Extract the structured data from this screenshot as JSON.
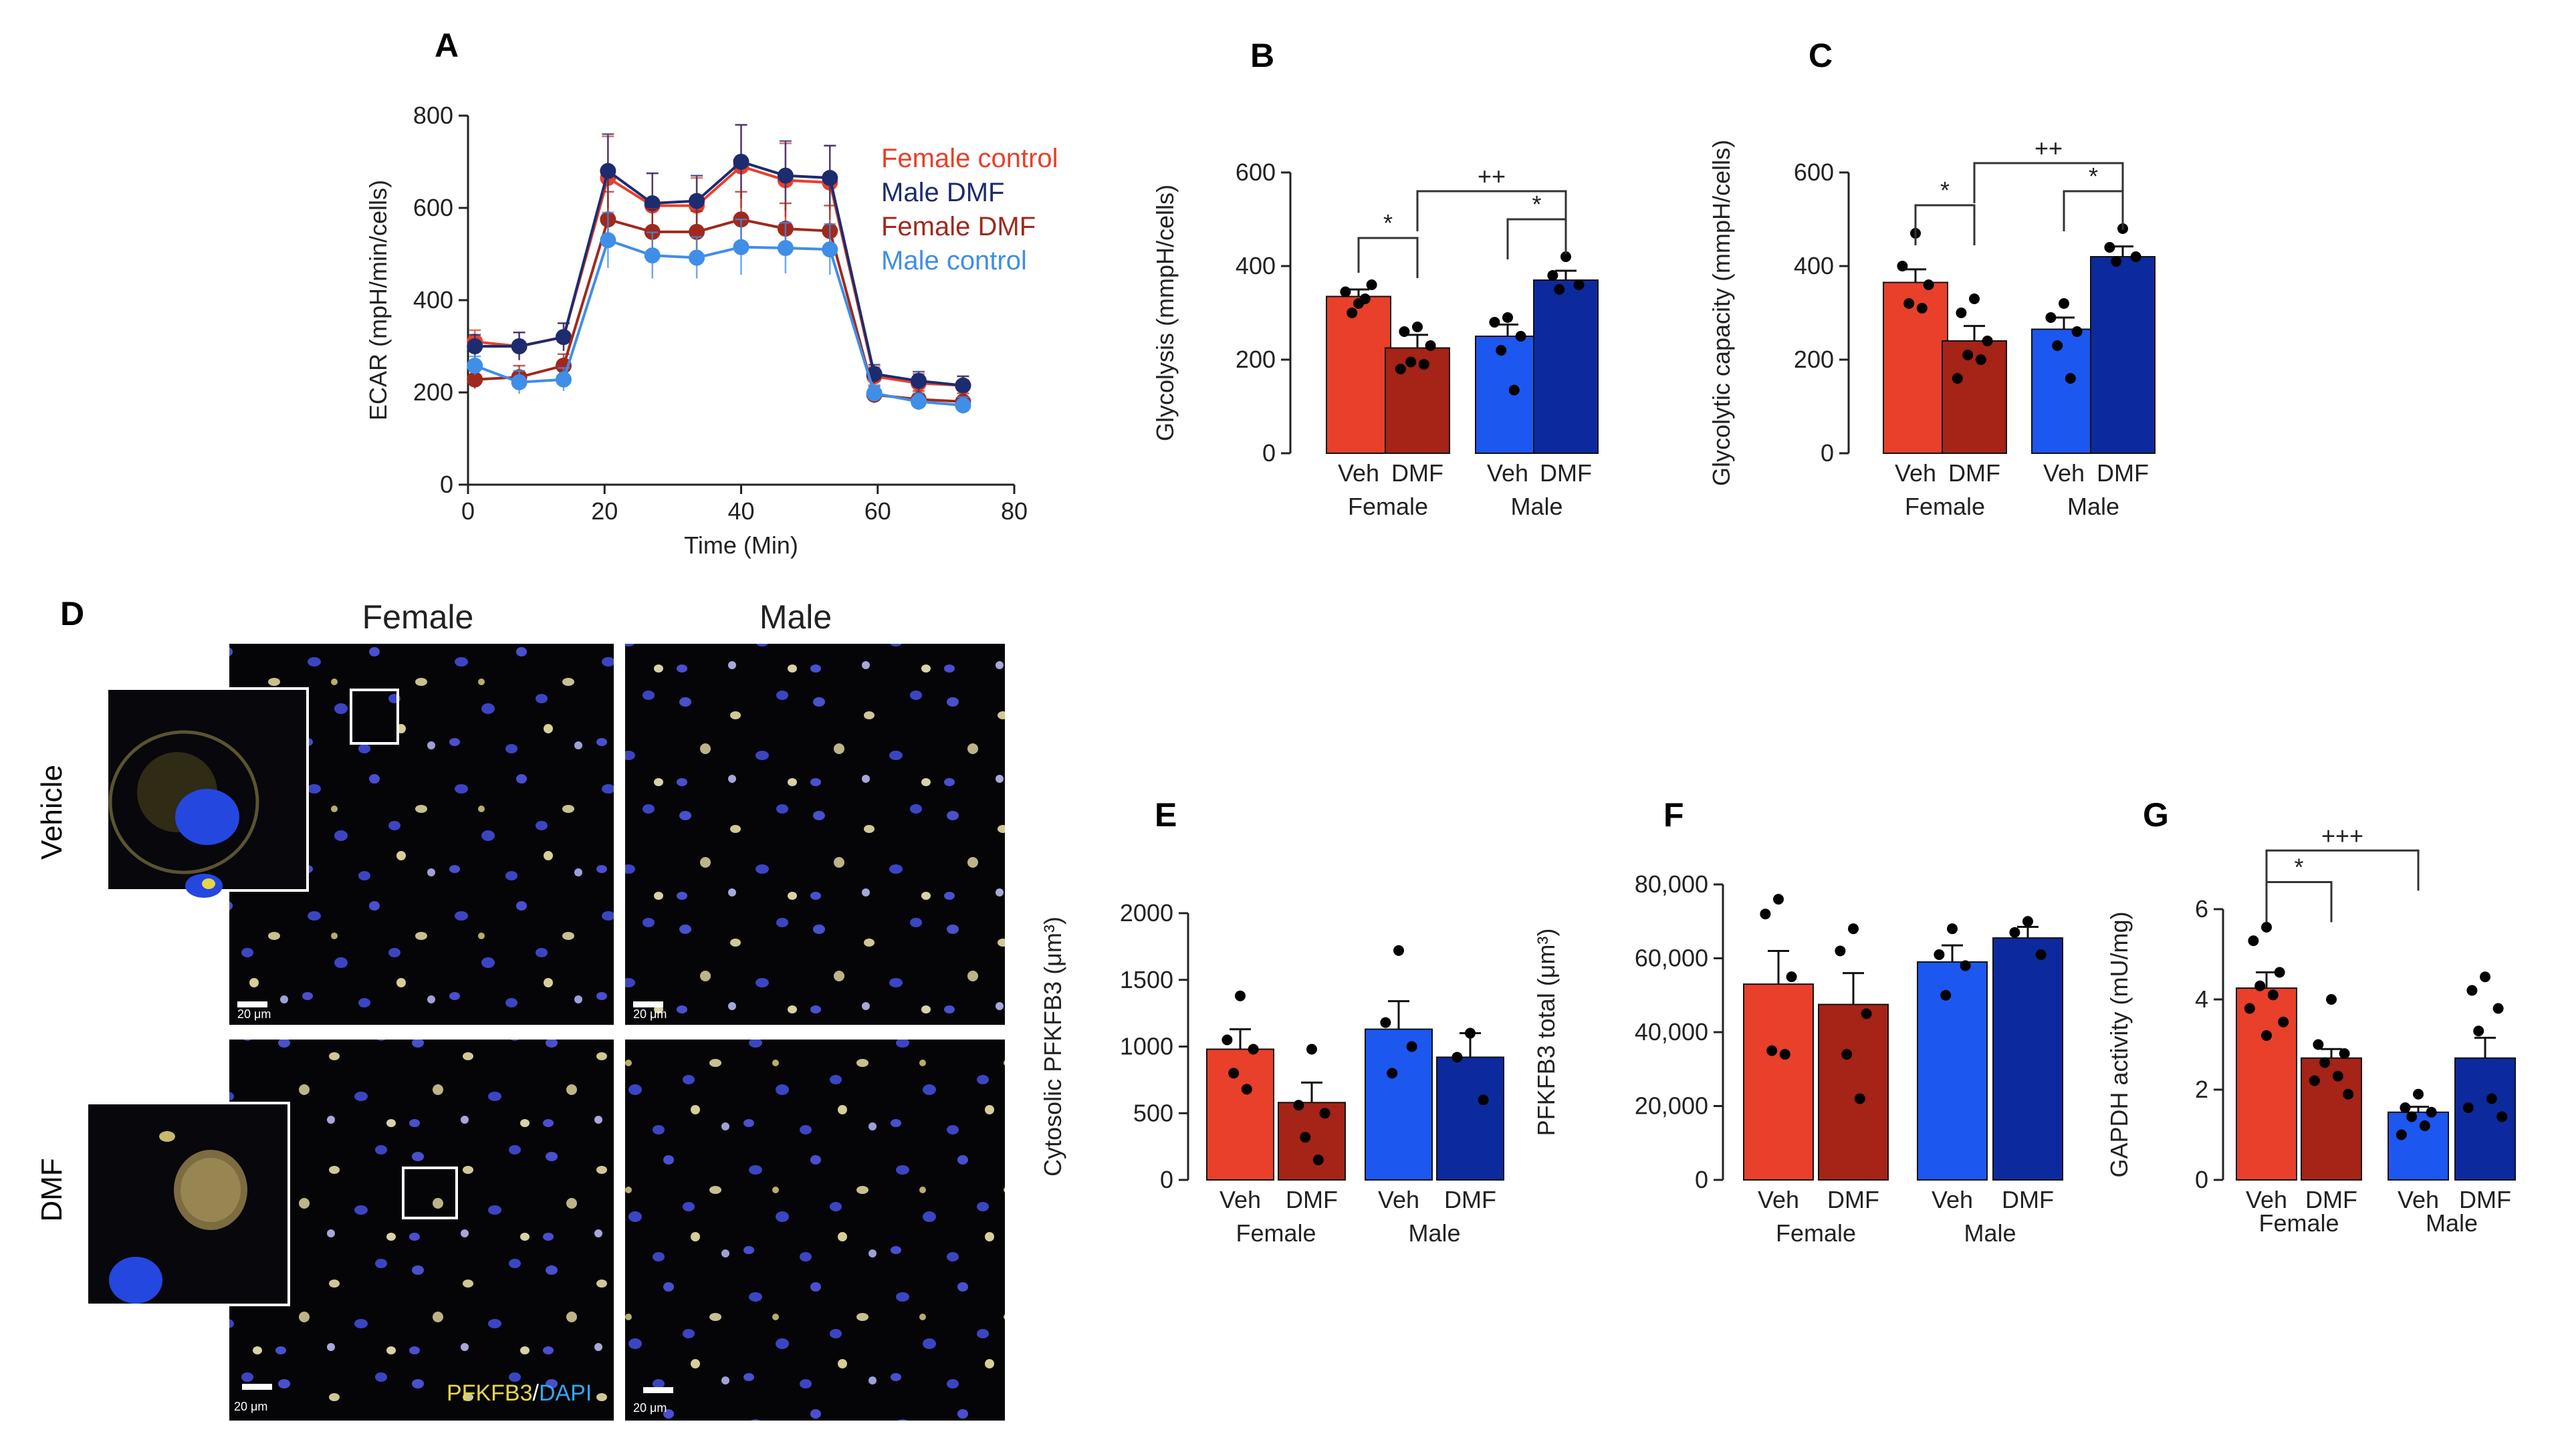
{
  "colors": {
    "female_veh": "#e8402a",
    "female_dmf": "#a52317",
    "male_veh": "#1c57f0",
    "male_dmf": "#0c2a9e",
    "female_control_line": "#e8402a",
    "male_dmf_line": "#1d2c6e",
    "female_dmf_line": "#a0291d",
    "male_control_line": "#3f8ee8",
    "pfkfb3": "#e5d64a",
    "dapi": "#35a7f0"
  },
  "chart_data": [
    {
      "id": "A",
      "panel_label": "A",
      "type": "line",
      "xlabel": "Time (Min)",
      "ylabel": "ECAR (mpH/min/cells)",
      "xlim": [
        0,
        80
      ],
      "ylim": [
        0,
        800
      ],
      "xticks": [
        "0",
        "20",
        "40",
        "60",
        "80"
      ],
      "yticks": [
        "0",
        "200",
        "400",
        "600",
        "800"
      ],
      "x": [
        1,
        7.5,
        14,
        20.5,
        27,
        33.5,
        40,
        46.5,
        53,
        59.5,
        66,
        72.5
      ],
      "series": [
        {
          "name": "Female control",
          "color_key": "female_control_line",
          "values": [
            310,
            300,
            320,
            665,
            605,
            605,
            690,
            660,
            655,
            235,
            220,
            215
          ],
          "errors": [
            25,
            30,
            30,
            90,
            70,
            60,
            90,
            80,
            80,
            20,
            20,
            20
          ]
        },
        {
          "name": "Male DMF",
          "color_key": "male_dmf_line",
          "values": [
            300,
            300,
            320,
            680,
            610,
            615,
            700,
            670,
            665,
            240,
            225,
            215
          ],
          "errors": [
            25,
            30,
            30,
            80,
            65,
            55,
            80,
            75,
            70,
            20,
            20,
            20
          ]
        },
        {
          "name": "Female DMF",
          "color_key": "female_dmf_line",
          "values": [
            228,
            233,
            258,
            575,
            548,
            548,
            575,
            555,
            550,
            195,
            185,
            180
          ],
          "errors": [
            20,
            25,
            25,
            60,
            50,
            45,
            60,
            55,
            55,
            18,
            18,
            18
          ]
        },
        {
          "name": "Male control",
          "color_key": "male_control_line",
          "values": [
            258,
            222,
            228,
            530,
            497,
            492,
            515,
            513,
            510,
            198,
            180,
            172
          ],
          "errors": [
            20,
            25,
            25,
            60,
            50,
            45,
            60,
            55,
            55,
            18,
            18,
            18
          ]
        }
      ]
    },
    {
      "id": "B",
      "panel_label": "B",
      "type": "bar",
      "ylabel": "Glycolysis (mmpH/cells)",
      "ylim": [
        0,
        600
      ],
      "yticks": [
        "0",
        "200",
        "400",
        "600"
      ],
      "categories": [
        "Veh",
        "DMF",
        "Veh",
        "DMF"
      ],
      "groups": [
        "Female",
        "Male"
      ],
      "values": [
        335,
        225,
        250,
        370
      ],
      "errors": [
        15,
        28,
        25,
        20
      ],
      "points": [
        [
          320,
          345,
          360,
          300,
          330
        ],
        [
          270,
          260,
          230,
          195,
          190,
          180
        ],
        [
          290,
          280,
          250,
          220,
          135
        ],
        [
          420,
          380,
          360,
          350
        ]
      ],
      "brackets": [
        {
          "from": 0,
          "to": 1,
          "label": "*",
          "level": 460
        },
        {
          "from": 1,
          "to": 3,
          "label": "++",
          "level": 560
        },
        {
          "from": 2,
          "to": 3,
          "label": "*",
          "level": 500
        }
      ]
    },
    {
      "id": "C",
      "panel_label": "C",
      "type": "bar",
      "ylabel": "Glycolytic capacity (mmpH/cells)",
      "ylim": [
        0,
        600
      ],
      "yticks": [
        "0",
        "200",
        "400",
        "600"
      ],
      "categories": [
        "Veh",
        "DMF",
        "Veh",
        "DMF"
      ],
      "groups": [
        "Female",
        "Male"
      ],
      "values": [
        365,
        240,
        265,
        420
      ],
      "errors": [
        28,
        32,
        25,
        22
      ],
      "points": [
        [
          470,
          400,
          360,
          320,
          310
        ],
        [
          330,
          300,
          240,
          210,
          200,
          160
        ],
        [
          320,
          290,
          260,
          230,
          160
        ],
        [
          480,
          440,
          420,
          410
        ]
      ],
      "brackets": [
        {
          "from": 0,
          "to": 1,
          "label": "*",
          "level": 530
        },
        {
          "from": 1,
          "to": 3,
          "label": "++",
          "level": 620
        },
        {
          "from": 2,
          "to": 3,
          "label": "*",
          "level": 560
        }
      ]
    },
    {
      "id": "E",
      "panel_label": "E",
      "type": "bar",
      "ylabel": "Cytosolic PFKFB3 (μm³)",
      "ylim": [
        0,
        2000
      ],
      "yticks": [
        "0",
        "500",
        "1000",
        "1500",
        "2000"
      ],
      "categories": [
        "Veh",
        "DMF",
        "Veh",
        "DMF"
      ],
      "groups": [
        "Female",
        "Male"
      ],
      "values": [
        980,
        580,
        1130,
        920
      ],
      "errors": [
        150,
        150,
        210,
        180
      ],
      "points": [
        [
          1380,
          1050,
          980,
          800,
          680
        ],
        [
          980,
          560,
          500,
          320,
          150
        ],
        [
          1720,
          1180,
          1000,
          800
        ],
        [
          1100,
          920,
          600
        ]
      ],
      "brackets": []
    },
    {
      "id": "F",
      "panel_label": "F",
      "type": "bar",
      "ylabel": "PFKFB3 total (μm³)",
      "ylim": [
        0,
        80000
      ],
      "yticks": [
        "0",
        "20,000",
        "40,000",
        "60,000",
        "80,000"
      ],
      "categories": [
        "Veh",
        "DMF",
        "Veh",
        "DMF"
      ],
      "groups": [
        "Female",
        "Male"
      ],
      "values": [
        53000,
        47500,
        59000,
        65500
      ],
      "errors": [
        9000,
        8500,
        4500,
        3000
      ],
      "points": [
        [
          76000,
          72000,
          55000,
          35000,
          34000
        ],
        [
          68000,
          62000,
          45000,
          34000,
          22000
        ],
        [
          68000,
          61000,
          58000,
          50000
        ],
        [
          70000,
          67000,
          61000
        ]
      ],
      "brackets": []
    },
    {
      "id": "G",
      "panel_label": "G",
      "type": "bar",
      "ylabel": "GAPDH activity (mU/mg)",
      "ylim": [
        0,
        6
      ],
      "yticks": [
        "0",
        "2",
        "4",
        "6"
      ],
      "categories": [
        "Veh",
        "DMF",
        "Veh",
        "DMF"
      ],
      "groups": [
        "Female",
        "Male"
      ],
      "values": [
        4.25,
        2.7,
        1.5,
        2.7
      ],
      "errors": [
        0.35,
        0.2,
        0.12,
        0.45
      ],
      "points": [
        [
          5.6,
          5.3,
          4.6,
          4.3,
          4.1,
          3.8,
          3.5,
          3.2
        ],
        [
          4.0,
          3.0,
          2.8,
          2.6,
          2.3,
          2.2,
          1.9
        ],
        [
          1.9,
          1.6,
          1.5,
          1.4,
          1.2,
          1.0
        ],
        [
          4.5,
          4.2,
          3.8,
          3.3,
          1.8,
          1.6,
          1.4
        ]
      ],
      "brackets": [
        {
          "from": 0,
          "to": 1,
          "label": "*",
          "level": 6.6
        },
        {
          "from": 0,
          "to": 2,
          "label": "+++",
          "level": 7.3
        }
      ]
    }
  ],
  "panel_d": {
    "label": "D",
    "col_female": "Female",
    "col_male": "Male",
    "row_vehicle": "Vehicle",
    "row_dmf": "DMF",
    "scale_label": "20 μm",
    "stain_pfkfb3": "PFKFB3",
    "stain_sep": "/",
    "stain_dapi": "DAPI"
  }
}
